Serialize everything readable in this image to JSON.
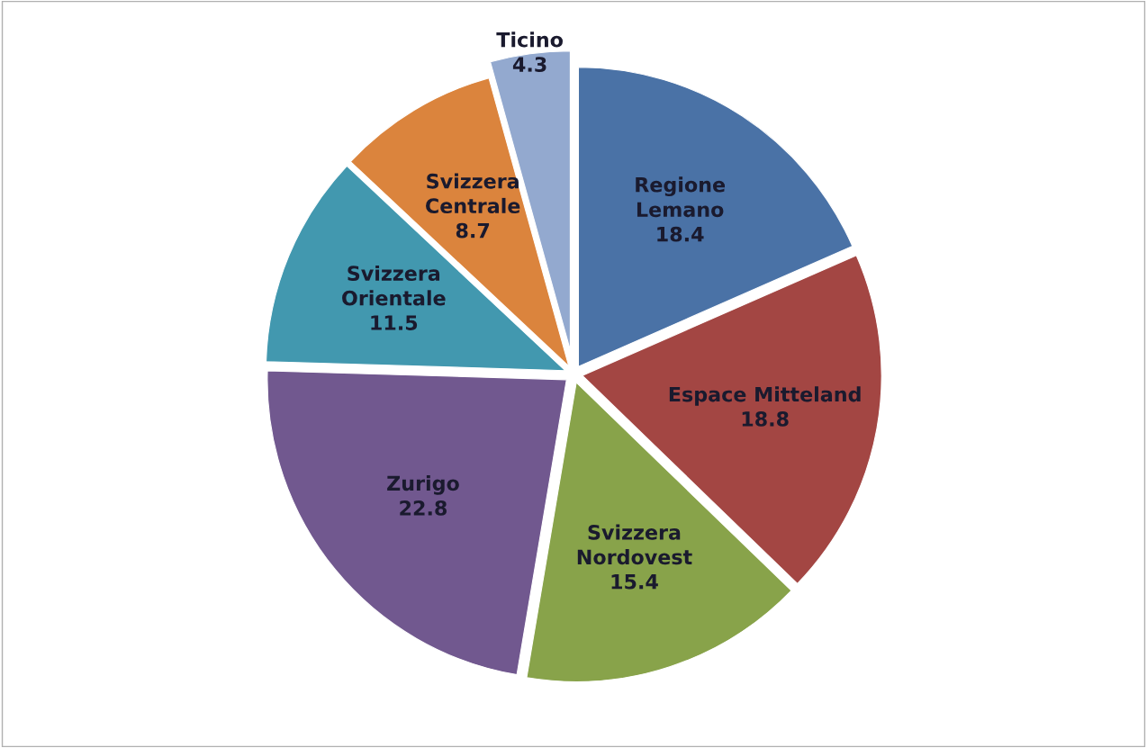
{
  "chart_data": {
    "type": "pie",
    "categories": [
      "Regione\nLemano",
      "Espace Mitteland",
      "Svizzera\nNordovest",
      "Zurigo",
      "Svizzera\nOrientale",
      "Svizzera\nCentrale",
      "Ticino"
    ],
    "values": [
      18.4,
      18.8,
      15.4,
      22.8,
      11.5,
      8.7,
      4.3
    ],
    "colors": [
      "#4a72a6",
      "#a34643",
      "#88a34a",
      "#71588f",
      "#4298af",
      "#db843d",
      "#93a9cf"
    ],
    "data_labels": true
  }
}
